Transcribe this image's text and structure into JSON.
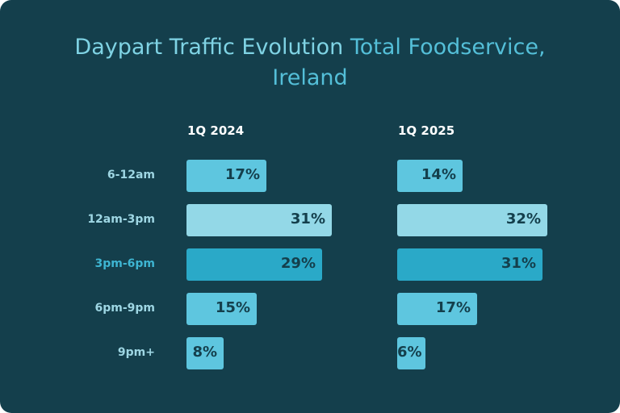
{
  "chart_data": {
    "type": "bar",
    "orientation": "horizontal",
    "title": "Daypart Traffic Evolution",
    "title_accent": "Total Foodservice,",
    "title_line2": "Ireland",
    "categories": [
      "6-12am",
      "12am-3pm",
      "3pm-6pm",
      "6pm-9pm",
      "9pm+"
    ],
    "series": [
      {
        "name": "1Q 2024",
        "values": [
          17,
          31,
          29,
          15,
          8
        ]
      },
      {
        "name": "1Q 2025",
        "values": [
          14,
          32,
          31,
          17,
          6
        ]
      }
    ],
    "value_suffix": "%",
    "category_colors": [
      "#5ec6df",
      "#93d8e7",
      "#2aa9c8",
      "#5ec6df",
      "#5ec6df"
    ],
    "category_label_colors": [
      "#9ed6e3",
      "#9ed6e3",
      "#3eb5d2",
      "#9ed6e3",
      "#9ed6e3"
    ],
    "background": "#143f4c",
    "title_color": "#7fd3e4",
    "title_accent_color": "#54bfd8",
    "bar_text_color": "#143f4c",
    "grid": false,
    "legend": "none"
  }
}
